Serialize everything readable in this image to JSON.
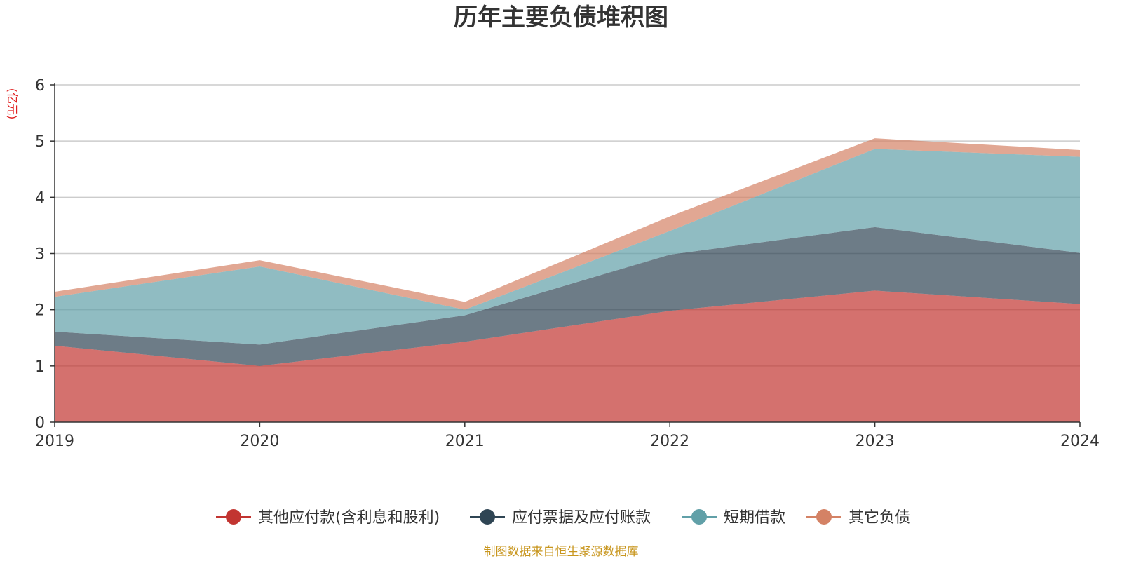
{
  "chart_data": {
    "type": "area",
    "stacked": true,
    "title": "历年主要负债堆积图",
    "unit_label": "(亿元)",
    "categories": [
      "2019",
      "2020",
      "2021",
      "2022",
      "2023",
      "2024"
    ],
    "ylim": [
      0,
      6
    ],
    "yticks": [
      "0",
      "1",
      "2",
      "3",
      "4",
      "5",
      "6"
    ],
    "grid": true,
    "legend_position": "bottom",
    "series": [
      {
        "name": "其他应付款(含利息和股利)",
        "color": "#c23531",
        "values": [
          1.36,
          1.0,
          1.43,
          1.98,
          2.34,
          2.1
        ]
      },
      {
        "name": "应付票据及应付账款",
        "color": "#2f4554",
        "values": [
          0.25,
          0.38,
          0.47,
          1.0,
          1.13,
          0.91
        ]
      },
      {
        "name": "短期借款",
        "color": "#61a0a8",
        "values": [
          0.62,
          1.39,
          0.1,
          0.42,
          1.39,
          1.71
        ]
      },
      {
        "name": "其它负债",
        "color": "#d48265",
        "values": [
          0.09,
          0.11,
          0.14,
          0.26,
          0.19,
          0.12
        ]
      }
    ],
    "source_note": "制图数据来自恒生聚源数据库"
  }
}
